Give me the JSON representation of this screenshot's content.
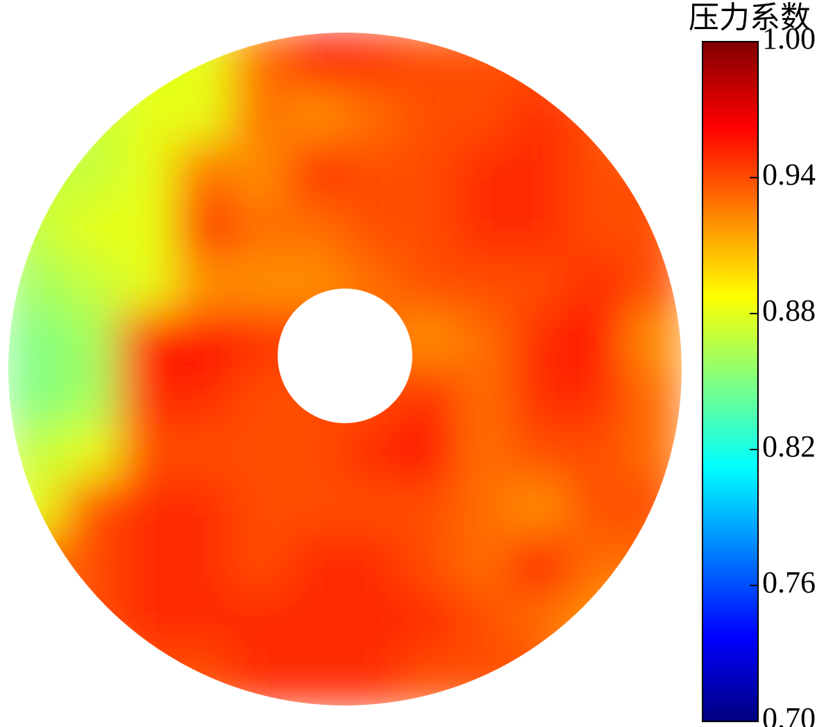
{
  "chart_data": {
    "type": "heatmap",
    "shape": "annulus",
    "colormap": "jet",
    "colorbar_title": "压力系数",
    "clim": [
      0.7,
      1.0
    ],
    "cticks": [
      {
        "value": 0.7,
        "label": "0.70"
      },
      0.76,
      0.82,
      0.88,
      0.94,
      {
        "value": 1.0,
        "label": "1.00"
      }
    ],
    "values": [
      [
        null,
        null,
        0.88,
        0.88,
        0.93,
        0.96,
        0.95,
        0.94,
        0.94,
        0.94,
        null,
        null
      ],
      [
        null,
        0.87,
        0.88,
        0.88,
        0.93,
        0.92,
        0.93,
        0.94,
        0.94,
        0.95,
        0.94,
        null
      ],
      [
        0.87,
        0.87,
        0.88,
        0.93,
        0.92,
        0.95,
        0.94,
        0.94,
        0.95,
        0.95,
        0.94,
        0.94
      ],
      [
        0.87,
        0.88,
        0.88,
        0.95,
        0.93,
        0.93,
        0.94,
        0.94,
        0.95,
        0.95,
        0.94,
        0.94
      ],
      [
        0.86,
        0.87,
        0.88,
        0.92,
        0.92,
        0.92,
        0.93,
        0.94,
        0.94,
        0.94,
        0.95,
        0.94
      ],
      [
        0.85,
        0.86,
        0.96,
        0.96,
        0.95,
        0.94,
        0.93,
        0.92,
        0.93,
        0.95,
        0.96,
        0.92
      ],
      [
        0.85,
        0.86,
        0.95,
        0.95,
        0.94,
        0.94,
        0.94,
        0.95,
        0.93,
        0.95,
        0.95,
        0.93
      ],
      [
        0.87,
        0.88,
        0.94,
        0.94,
        0.94,
        0.94,
        0.95,
        0.96,
        0.93,
        0.94,
        0.94,
        0.93
      ],
      [
        0.88,
        0.94,
        0.95,
        0.95,
        0.94,
        0.94,
        0.94,
        0.94,
        0.93,
        0.92,
        0.94,
        0.94
      ],
      [
        0.93,
        0.94,
        0.95,
        0.95,
        0.94,
        0.95,
        0.95,
        0.94,
        0.93,
        0.96,
        0.93,
        0.93
      ],
      [
        null,
        0.94,
        0.95,
        0.95,
        0.95,
        0.95,
        0.95,
        0.95,
        0.94,
        0.93,
        0.92,
        null
      ],
      [
        null,
        null,
        0.94,
        0.94,
        0.95,
        0.95,
        0.95,
        0.94,
        0.94,
        0.94,
        null,
        null
      ]
    ]
  }
}
